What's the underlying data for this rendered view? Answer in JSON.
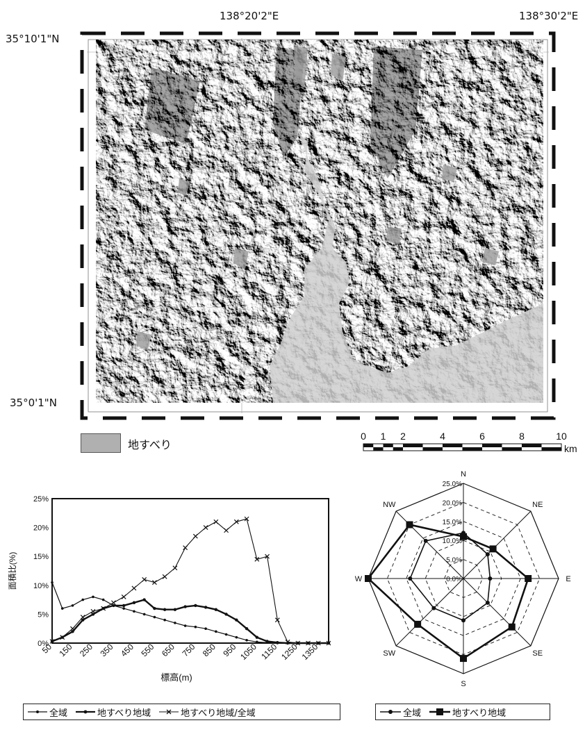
{
  "map": {
    "coord_top_1": "138°20'2\"E",
    "coord_top_2": "138°30'2\"E",
    "coord_left_top": "35°10'1\"N",
    "coord_left_bottom": "35°0'1\"N",
    "legend_label": "地すべり",
    "legend_color": "#b0b0b0",
    "scale_ticks": [
      "0",
      "1",
      "2",
      "4",
      "6",
      "8",
      "10"
    ],
    "scale_unit": "km"
  },
  "line_chart": {
    "chart_data": {
      "type": "line",
      "ylabel": "面積比(%)",
      "xlabel": "標高(m)",
      "ylim": [
        0,
        25
      ],
      "y_ticks": [
        "0%",
        "5%",
        "10%",
        "15%",
        "20%",
        "25%"
      ],
      "x_tick_labels": [
        "50",
        "150",
        "250",
        "350",
        "450",
        "550",
        "650",
        "750",
        "850",
        "950",
        "1050",
        "1150",
        "1250",
        "1350"
      ],
      "x": [
        50,
        100,
        150,
        200,
        250,
        300,
        350,
        400,
        450,
        500,
        550,
        600,
        650,
        700,
        750,
        800,
        850,
        900,
        950,
        1000,
        1050,
        1100,
        1150,
        1200,
        1250,
        1300,
        1350,
        1400
      ],
      "series": [
        {
          "name": "全域",
          "values": [
            10.5,
            6.0,
            6.5,
            7.5,
            8.0,
            7.5,
            6.5,
            6.0,
            5.5,
            5.0,
            4.5,
            4.0,
            3.5,
            3.0,
            2.8,
            2.5,
            2.0,
            1.5,
            1.0,
            0.5,
            0.2,
            0.1,
            0.0,
            0.0,
            0.0,
            0.0,
            0.0,
            0.0
          ]
        },
        {
          "name": "地すべり地域",
          "values": [
            0.3,
            1.0,
            2.0,
            4.0,
            5.0,
            6.0,
            6.5,
            6.5,
            7.0,
            7.5,
            6.0,
            5.8,
            5.8,
            6.3,
            6.5,
            6.2,
            5.8,
            5.0,
            4.0,
            2.5,
            1.0,
            0.3,
            0.1,
            0.0,
            0.0,
            0.0,
            0.0,
            0.0
          ]
        },
        {
          "name": "地すべり地域/全域",
          "values": [
            0.3,
            1.0,
            2.5,
            4.5,
            5.5,
            6.0,
            7.0,
            8.0,
            9.5,
            11.0,
            10.5,
            11.5,
            13.0,
            16.5,
            18.5,
            20.0,
            21.0,
            19.5,
            21.0,
            21.5,
            14.5,
            15.0,
            4.0,
            0.2,
            0.0,
            0.0,
            0.0,
            0.0
          ]
        }
      ]
    }
  },
  "radar_chart": {
    "chart_data": {
      "type": "radar",
      "categories": [
        "N",
        "NE",
        "E",
        "SE",
        "S",
        "SW",
        "W",
        "NW"
      ],
      "ring_labels": [
        "0.0%",
        "5.0%",
        "10.0%",
        "15.0%",
        "20.0%",
        "25.0%"
      ],
      "rmax": 25,
      "series": [
        {
          "name": "全域",
          "values": [
            12,
            9,
            7,
            9,
            11,
            11,
            14,
            14
          ]
        },
        {
          "name": "地すべり地域",
          "values": [
            11,
            11,
            17,
            18,
            21,
            17,
            25,
            20
          ]
        }
      ]
    }
  },
  "legends": {
    "line": [
      "全域",
      "地すべり地域",
      "地すべり地域/全域"
    ],
    "radar": [
      "全域",
      "地すべり地域"
    ]
  }
}
